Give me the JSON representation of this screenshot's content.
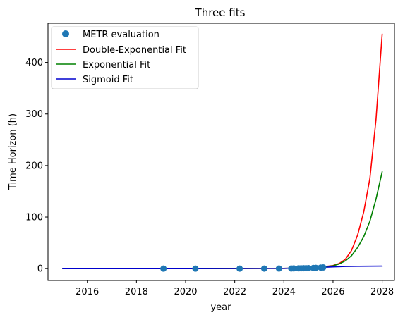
{
  "chart_data": {
    "type": "line",
    "title": "Three fits",
    "xlabel": "year",
    "ylabel": "Time Horizon (h)",
    "xlim": [
      2014.4,
      2028.5
    ],
    "ylim": [
      -23,
      476
    ],
    "xticks": [
      2016,
      2018,
      2020,
      2022,
      2024,
      2026,
      2028
    ],
    "yticks": [
      0,
      100,
      200,
      300,
      400
    ],
    "grid": false,
    "legend_position": "top-left",
    "scatter": {
      "name": "METR evaluation",
      "color": "#1f77b4",
      "x": [
        2019.1,
        2020.4,
        2022.2,
        2023.2,
        2023.8,
        2024.3,
        2024.4,
        2024.6,
        2024.7,
        2024.8,
        2024.9,
        2025.0,
        2025.2,
        2025.3,
        2025.5,
        2025.6
      ],
      "y": [
        0.0,
        0.01,
        0.05,
        0.1,
        0.2,
        0.3,
        0.4,
        0.5,
        0.6,
        0.7,
        0.8,
        1.0,
        1.2,
        1.5,
        2.0,
        2.3
      ]
    },
    "series": [
      {
        "name": "Double-Exponential Fit",
        "color": "#ff0000",
        "x": [
          2015.0,
          2020.0,
          2024.0,
          2025.0,
          2025.5,
          2026.0,
          2026.25,
          2026.5,
          2026.75,
          2027.0,
          2027.25,
          2027.5,
          2027.75,
          2028.0
        ],
        "y": [
          0,
          0.05,
          0.5,
          1.5,
          3,
          6,
          10,
          18,
          35,
          65,
          110,
          175,
          290,
          455
        ]
      },
      {
        "name": "Exponential Fit",
        "color": "#008000",
        "x": [
          2015.0,
          2020.0,
          2024.0,
          2025.0,
          2025.5,
          2026.0,
          2026.25,
          2026.5,
          2026.75,
          2027.0,
          2027.25,
          2027.5,
          2027.75,
          2028.0
        ],
        "y": [
          0,
          0.05,
          0.5,
          1.5,
          3,
          5.5,
          9,
          15,
          25,
          41,
          62,
          92,
          135,
          188
        ]
      },
      {
        "name": "Sigmoid Fit",
        "color": "#0000cd",
        "x": [
          2015.0,
          2020.0,
          2024.0,
          2025.0,
          2025.5,
          2026.0,
          2026.5,
          2027.0,
          2027.5,
          2028.0
        ],
        "y": [
          0,
          0.05,
          0.5,
          1.4,
          2.3,
          3.4,
          4.2,
          4.6,
          4.8,
          4.9
        ]
      }
    ]
  }
}
